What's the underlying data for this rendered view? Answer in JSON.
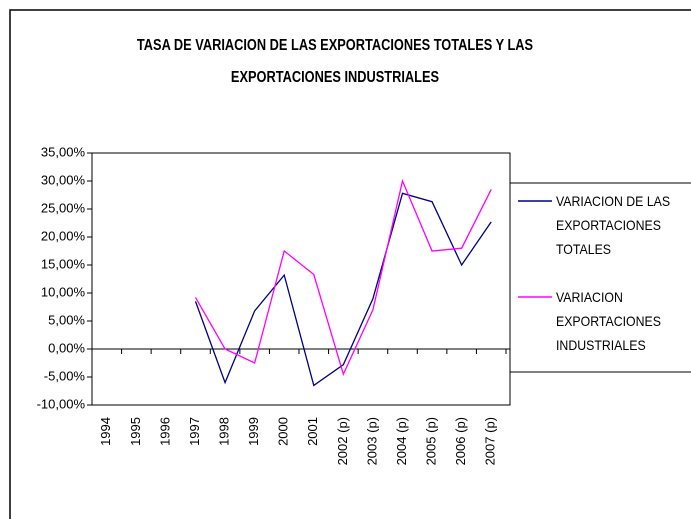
{
  "chart_data": {
    "type": "line",
    "title": "TASA DE VARIACION DE LAS EXPORTACIONES TOTALES Y LAS EXPORTACIONES INDUSTRIALES",
    "categories": [
      "1994",
      "1995",
      "1996",
      "1997",
      "1998",
      "1999",
      "2000",
      "2001",
      "2002 (p)",
      "2003 (p)",
      "2004 (p)",
      "2005 (p)",
      "2006 (p)",
      "2007 (p)"
    ],
    "series": [
      {
        "name": "VARIACION DE LAS EXPORTACIONES TOTALES",
        "color": "#000080",
        "values": [
          null,
          null,
          null,
          8.5,
          -6,
          6.8,
          13.2,
          -6.5,
          -2.8,
          9,
          27.8,
          26.3,
          15,
          22.7
        ]
      },
      {
        "name": "VARIACION EXPORTACIONES INDUSTRIALES",
        "color": "#ff00ff",
        "values": [
          null,
          null,
          null,
          9.2,
          0,
          -2.5,
          17.5,
          13.3,
          -4.5,
          7,
          30,
          17.5,
          18,
          28.5
        ]
      }
    ],
    "ylim": [
      -10,
      35
    ],
    "yticks": [
      {
        "value": -10,
        "label": "-10,00%"
      },
      {
        "value": -5,
        "label": "-5,00%"
      },
      {
        "value": 0,
        "label": "0,00%"
      },
      {
        "value": 5,
        "label": "5,00%"
      },
      {
        "value": 10,
        "label": "10,00%"
      },
      {
        "value": 15,
        "label": "15,00%"
      },
      {
        "value": 20,
        "label": "20,00%"
      },
      {
        "value": 25,
        "label": "25,00%"
      },
      {
        "value": 30,
        "label": "30,00%"
      },
      {
        "value": 35,
        "label": "35,00%"
      }
    ],
    "legend": "right"
  }
}
